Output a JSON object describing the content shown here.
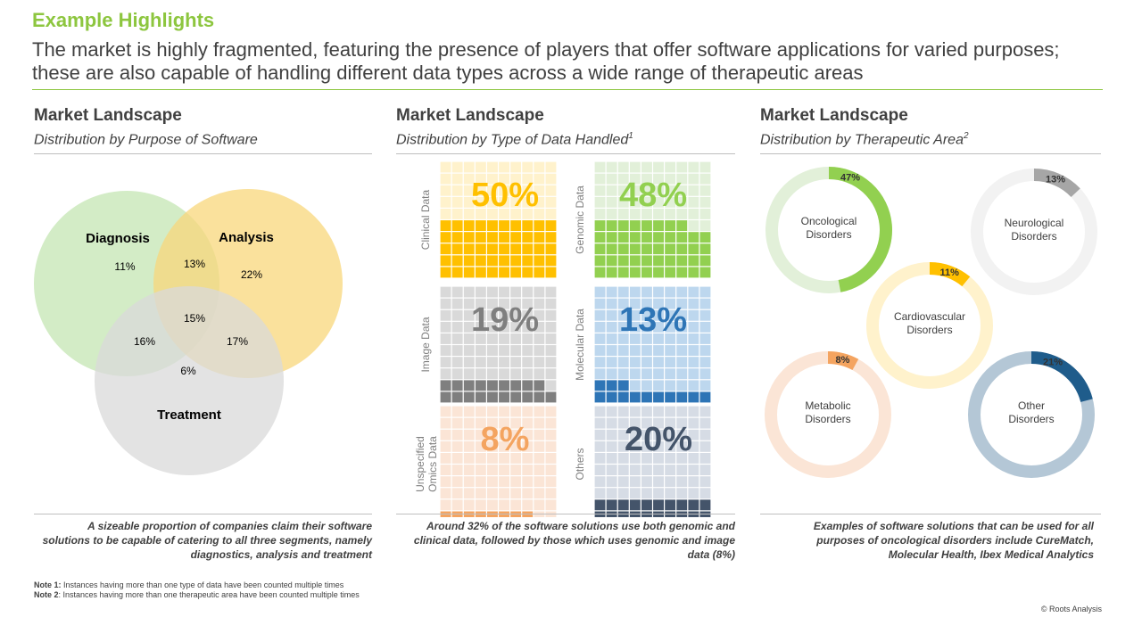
{
  "header": {
    "title": "Example Highlights",
    "subtitle": "The market is highly fragmented, featuring the presence of players that offer software applications for varied purposes; these are also capable of handling different data types across a wide range of therapeutic areas"
  },
  "panels": [
    {
      "title": "Market Landscape",
      "subtitle": "Distribution by Purpose of Software",
      "sup": ""
    },
    {
      "title": "Market Landscape",
      "subtitle": "Distribution by Type of Data Handled",
      "sup": "1"
    },
    {
      "title": "Market Landscape",
      "subtitle": "Distribution by Therapeutic Area",
      "sup": "2"
    }
  ],
  "chart_data": [
    {
      "type": "venn",
      "sets": [
        {
          "name": "Diagnosis",
          "color": "#C4E5B3"
        },
        {
          "name": "Analysis",
          "color": "#F8D77B"
        },
        {
          "name": "Treatment",
          "color": "#D9D9D9"
        }
      ],
      "regions": [
        {
          "sets": [
            "Diagnosis"
          ],
          "label": "11%"
        },
        {
          "sets": [
            "Diagnosis",
            "Analysis"
          ],
          "label": "13%"
        },
        {
          "sets": [
            "Analysis"
          ],
          "label": "22%"
        },
        {
          "sets": [
            "Diagnosis",
            "Analysis",
            "Treatment"
          ],
          "label": "15%"
        },
        {
          "sets": [
            "Diagnosis",
            "Treatment"
          ],
          "label": "16%"
        },
        {
          "sets": [
            "Analysis",
            "Treatment"
          ],
          "label": "17%"
        },
        {
          "sets": [
            "Treatment"
          ],
          "label": "6%"
        }
      ]
    },
    {
      "type": "waffle",
      "grid": {
        "cols": 10,
        "rows": 10
      },
      "items": [
        {
          "name": "Clinical Data",
          "label": "50%",
          "value": 50,
          "color": "#FFC000",
          "light": "#FFF2CC"
        },
        {
          "name": "Genomic Data",
          "label": "48%",
          "value": 48,
          "color": "#92D050",
          "light": "#E2F0D9"
        },
        {
          "name": "Image Data",
          "label": "19%",
          "value": 19,
          "color": "#7F7F7F",
          "light": "#D9D9D9"
        },
        {
          "name": "Molecular Data",
          "label": "13%",
          "value": 13,
          "color": "#2E75B6",
          "light": "#BDD7EE"
        },
        {
          "name": "Unspecified Omics Data",
          "label": "8%",
          "value": 8,
          "color": "#F4A460",
          "light": "#FBE5D6"
        },
        {
          "name": "Others",
          "label": "20%",
          "value": 20,
          "color": "#44546A",
          "light": "#D6DCE5"
        }
      ]
    },
    {
      "type": "donut",
      "items": [
        {
          "name": "Oncological Disorders",
          "label": "47%",
          "value": 47,
          "color": "#92D050",
          "light": "#E2F0D9"
        },
        {
          "name": "Neurological Disorders",
          "label": "13%",
          "value": 13,
          "color": "#A6A6A6",
          "light": "#F2F2F2"
        },
        {
          "name": "Cardiovascular Disorders",
          "label": "11%",
          "value": 11,
          "color": "#FFC000",
          "light": "#FFF2CC"
        },
        {
          "name": "Metabolic Disorders",
          "label": "8%",
          "value": 8,
          "color": "#F4A460",
          "light": "#FBE5D6"
        },
        {
          "name": "Other Disorders",
          "label": "21%",
          "value": 21,
          "color": "#1F5C8B",
          "light": "#B4C7D6"
        }
      ]
    }
  ],
  "footers": [
    "A sizeable proportion of companies claim their software solutions to be capable of catering to all three segments, namely diagnostics, analysis and treatment",
    "Around 32% of the software solutions use both genomic and clinical data, followed by those which uses genomic and image data (8%)",
    "Examples of software solutions that can be used for all purposes of oncological disorders include CureMatch, Molecular Health, Ibex Medical Analytics"
  ],
  "notes": [
    {
      "label": "Note 1:",
      "text": "Instances having more than one type of data have been counted multiple times"
    },
    {
      "label": "Note 2",
      "text": ": Instances having more than one therapeutic area have been counted multiple times"
    }
  ],
  "copyright": "© Roots Analysis"
}
